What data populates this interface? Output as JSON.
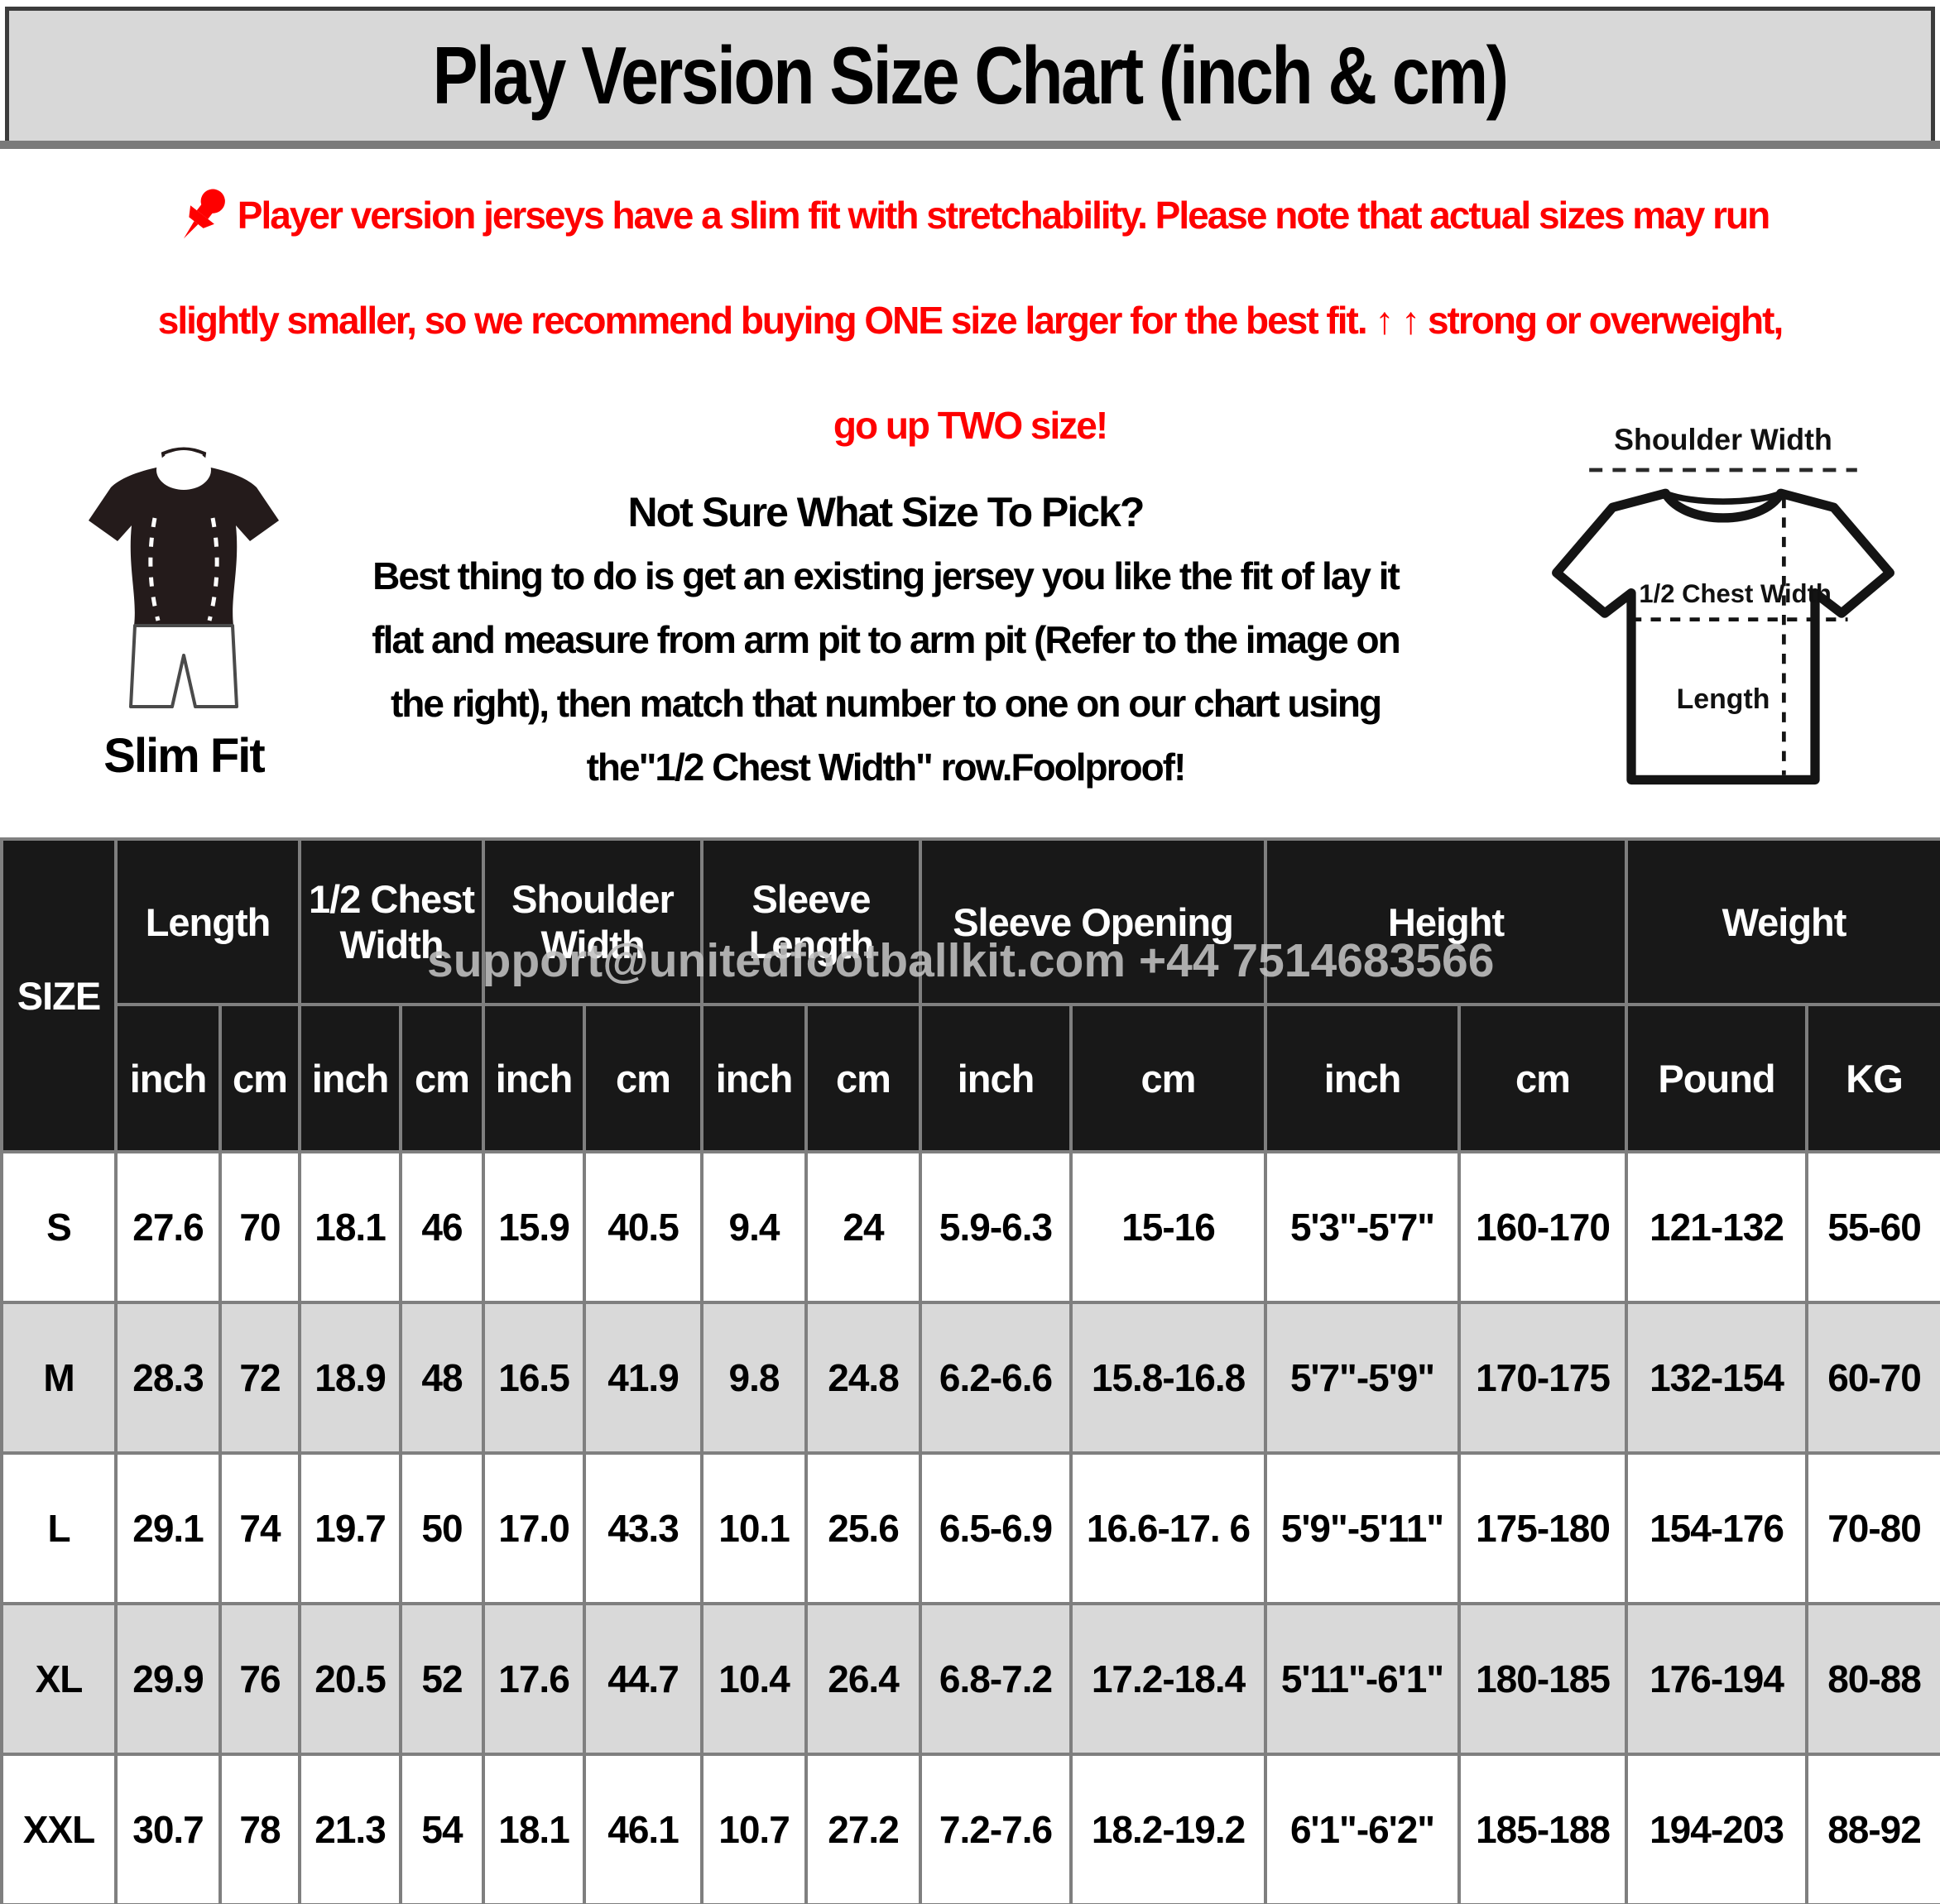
{
  "title": "Play Version Size Chart (inch & cm)",
  "notice": {
    "line1": "Player version jerseys have a slim fit with stretchability. Please note that actual sizes may run",
    "line2": "slightly smaller, so we recommend buying ONE size larger for the best fit. ↑ ↑ strong or overweight,",
    "line3": "go up TWO size!"
  },
  "fit_guide": {
    "heading": "Not Sure What Size To Pick?",
    "body_lines": [
      "Best thing to do is get an existing jersey you like the fit of lay it",
      "flat and measure from arm pit to arm pit (Refer to the image on",
      "the right), then match that number to one on our chart using",
      "the\"1/2 Chest Width\" row.Foolproof!"
    ],
    "slim_fit_label": "Slim Fit"
  },
  "diagram": {
    "shoulder_label": "Shoulder Width",
    "chest_label": "1/2 Chest Width",
    "length_label": "Length"
  },
  "watermark": "support@unitedfootballkit.com  +44 7514683566",
  "table": {
    "size_header": "SIZE",
    "groups": [
      {
        "label": "Length",
        "units": [
          "inch",
          "cm"
        ]
      },
      {
        "label": "1/2 Chest Width",
        "units": [
          "inch",
          "cm"
        ]
      },
      {
        "label": "Shoulder Width",
        "units": [
          "inch",
          "cm"
        ]
      },
      {
        "label": "Sleeve Length",
        "units": [
          "inch",
          "cm"
        ]
      },
      {
        "label": "Sleeve Opening",
        "units": [
          "inch",
          "cm"
        ]
      },
      {
        "label": "Height",
        "units": [
          "inch",
          "cm"
        ]
      },
      {
        "label": "Weight",
        "units": [
          "Pound",
          "KG"
        ]
      }
    ],
    "rows": [
      {
        "size": "S",
        "values": [
          "27.6",
          "70",
          "18.1",
          "46",
          "15.9",
          "40.5",
          "9.4",
          "24",
          "5.9-6.3",
          "15-16",
          "5'3\"-5'7\"",
          "160-170",
          "121-132",
          "55-60"
        ]
      },
      {
        "size": "M",
        "values": [
          "28.3",
          "72",
          "18.9",
          "48",
          "16.5",
          "41.9",
          "9.8",
          "24.8",
          "6.2-6.6",
          "15.8-16.8",
          "5'7\"-5'9\"",
          "170-175",
          "132-154",
          "60-70"
        ]
      },
      {
        "size": "L",
        "values": [
          "29.1",
          "74",
          "19.7",
          "50",
          "17.0",
          "43.3",
          "10.1",
          "25.6",
          "6.5-6.9",
          "16.6-17. 6",
          "5'9\"-5'11\"",
          "175-180",
          "154-176",
          "70-80"
        ]
      },
      {
        "size": "XL",
        "values": [
          "29.9",
          "76",
          "20.5",
          "52",
          "17.6",
          "44.7",
          "10.4",
          "26.4",
          "6.8-7.2",
          "17.2-18.4",
          "5'11\"-6'1\"",
          "180-185",
          "176-194",
          "80-88"
        ]
      },
      {
        "size": "XXL",
        "values": [
          "30.7",
          "78",
          "21.3",
          "54",
          "18.1",
          "46.1",
          "10.7",
          "27.2",
          "7.2-7.6",
          "18.2-19.2",
          "6'1\"-6'2\"",
          "185-188",
          "194-203",
          "88-92"
        ]
      }
    ]
  },
  "colors": {
    "notice_red": "#fe0000",
    "header_bg": "#181818",
    "stripe_gray": "#d9d9d9",
    "grid_gray": "#7f7f7f",
    "title_bg": "#d8d8d8"
  }
}
